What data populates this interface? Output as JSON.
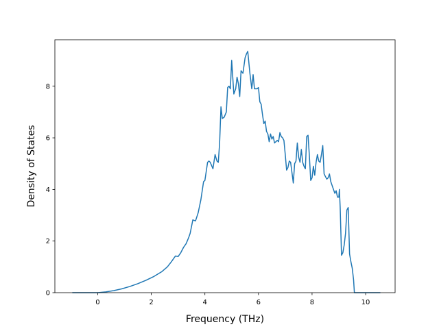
{
  "chart_data": {
    "type": "line",
    "title": "",
    "xlabel": "Frequency (THz)",
    "ylabel": "Density of States",
    "xlim": [
      -1.6,
      11.1
    ],
    "ylim": [
      0,
      9.8
    ],
    "xticks": [
      0,
      2,
      4,
      6,
      8,
      10
    ],
    "yticks": [
      0,
      2,
      4,
      6,
      8
    ],
    "grid": false,
    "series": [
      {
        "color": "#1f77b4",
        "x": [
          -0.95,
          0.0,
          0.3,
          0.6,
          0.9,
          1.2,
          1.5,
          1.8,
          2.1,
          2.4,
          2.6,
          2.75,
          2.9,
          3.0,
          3.1,
          3.2,
          3.3,
          3.4,
          3.45,
          3.55,
          3.65,
          3.75,
          3.85,
          3.95,
          4.0,
          4.1,
          4.15,
          4.2,
          4.3,
          4.38,
          4.45,
          4.5,
          4.55,
          4.6,
          4.65,
          4.72,
          4.8,
          4.85,
          4.9,
          4.95,
          5.0,
          5.08,
          5.15,
          5.2,
          5.25,
          5.3,
          5.35,
          5.42,
          5.5,
          5.55,
          5.6,
          5.68,
          5.75,
          5.8,
          5.85,
          5.95,
          6.0,
          6.05,
          6.1,
          6.15,
          6.2,
          6.25,
          6.3,
          6.35,
          6.4,
          6.45,
          6.5,
          6.55,
          6.6,
          6.7,
          6.75,
          6.8,
          6.85,
          6.9,
          6.95,
          7.0,
          7.05,
          7.1,
          7.15,
          7.2,
          7.25,
          7.3,
          7.35,
          7.4,
          7.45,
          7.5,
          7.55,
          7.6,
          7.65,
          7.7,
          7.75,
          7.8,
          7.85,
          7.9,
          7.95,
          8.0,
          8.05,
          8.1,
          8.15,
          8.2,
          8.25,
          8.3,
          8.35,
          8.4,
          8.45,
          8.5,
          8.55,
          8.6,
          8.65,
          8.7,
          8.75,
          8.8,
          8.85,
          8.9,
          8.95,
          9.0,
          9.02,
          9.05,
          9.1,
          9.15,
          9.2,
          9.25,
          9.3,
          9.35,
          9.4,
          9.45,
          9.5,
          9.55,
          9.58,
          9.62,
          10.55
        ],
        "y": [
          0.0,
          0.0,
          0.03,
          0.08,
          0.15,
          0.24,
          0.35,
          0.48,
          0.63,
          0.82,
          1.0,
          1.2,
          1.42,
          1.4,
          1.55,
          1.75,
          1.9,
          2.15,
          2.3,
          2.82,
          2.78,
          3.1,
          3.6,
          4.3,
          4.35,
          5.05,
          5.1,
          5.05,
          4.8,
          5.35,
          5.1,
          5.05,
          5.8,
          7.2,
          6.75,
          6.8,
          7.0,
          7.95,
          8.0,
          7.9,
          9.0,
          7.7,
          7.9,
          8.35,
          8.1,
          7.6,
          8.6,
          8.5,
          9.1,
          9.25,
          9.35,
          8.5,
          7.9,
          8.45,
          7.9,
          7.9,
          7.95,
          7.4,
          7.3,
          6.9,
          6.55,
          6.65,
          6.25,
          6.15,
          5.85,
          6.15,
          5.95,
          6.05,
          5.8,
          5.9,
          5.85,
          6.2,
          6.05,
          6.0,
          5.9,
          5.35,
          4.75,
          4.85,
          5.1,
          5.05,
          4.65,
          4.25,
          5.0,
          5.1,
          5.8,
          5.25,
          5.05,
          5.55,
          5.05,
          4.9,
          4.8,
          6.05,
          6.1,
          5.3,
          4.35,
          4.45,
          4.9,
          4.55,
          5.05,
          5.35,
          5.1,
          5.05,
          5.35,
          5.7,
          4.6,
          4.5,
          4.4,
          4.45,
          4.6,
          4.3,
          4.15,
          4.0,
          3.85,
          3.95,
          3.7,
          3.7,
          4.0,
          3.3,
          1.45,
          1.55,
          1.85,
          2.3,
          3.2,
          3.3,
          1.5,
          1.2,
          0.95,
          0.5,
          0.0,
          0.0,
          0.0
        ]
      }
    ]
  }
}
